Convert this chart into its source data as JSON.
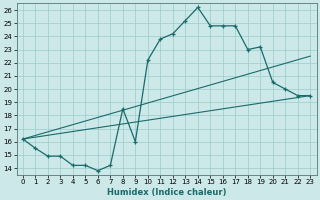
{
  "xlabel": "Humidex (Indice chaleur)",
  "bg_color": "#cce8e8",
  "line_color": "#1a6b6b",
  "grid_color": "#99cccc",
  "xlim": [
    -0.5,
    23.5
  ],
  "ylim": [
    13.5,
    26.5
  ],
  "xticks": [
    0,
    1,
    2,
    3,
    4,
    5,
    6,
    7,
    8,
    9,
    10,
    11,
    12,
    13,
    14,
    15,
    16,
    17,
    18,
    19,
    20,
    21,
    22,
    23
  ],
  "yticks": [
    14,
    15,
    16,
    17,
    18,
    19,
    20,
    21,
    22,
    23,
    24,
    25,
    26
  ],
  "curve_x": [
    0,
    1,
    2,
    3,
    4,
    5,
    6,
    7,
    8,
    9,
    10,
    11,
    12,
    13,
    14,
    15,
    16,
    17,
    18,
    19,
    20,
    21,
    22,
    23
  ],
  "curve_y": [
    16.2,
    15.5,
    14.9,
    14.9,
    14.2,
    14.2,
    13.8,
    14.2,
    18.5,
    16.0,
    22.2,
    23.8,
    24.2,
    25.2,
    26.2,
    24.8,
    24.8,
    24.8,
    23.0,
    23.2,
    20.5,
    20.0,
    19.5,
    19.5
  ],
  "line1_x": [
    0,
    23
  ],
  "line1_y": [
    16.2,
    22.5
  ],
  "line2_x": [
    0,
    23
  ],
  "line2_y": [
    16.2,
    19.5
  ],
  "xlabel_fontsize": 6,
  "tick_fontsize": 5
}
